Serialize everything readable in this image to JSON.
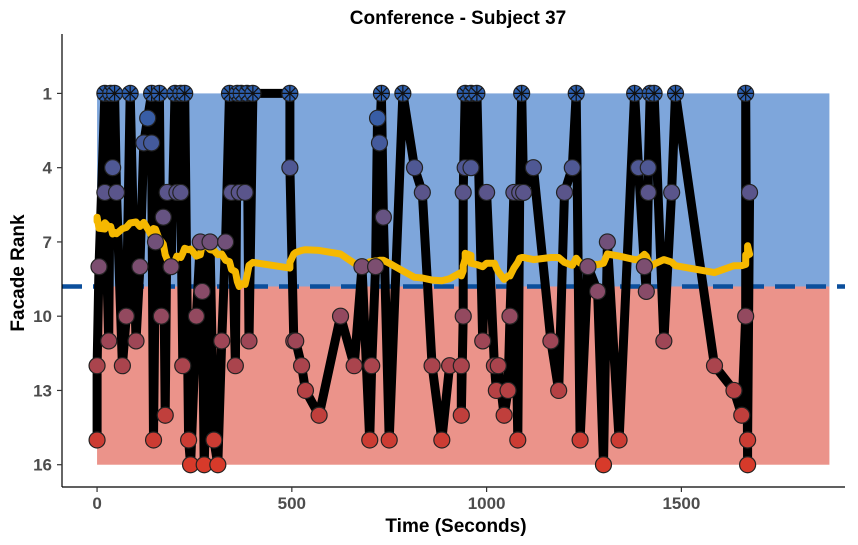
{
  "chart_data": {
    "type": "line",
    "title": "Conference - Subject 37",
    "xlabel": "Time (Seconds)",
    "ylabel": "Facade Rank",
    "xlim": [
      -90,
      1920
    ],
    "ylim": [
      16.9,
      -1.4
    ],
    "y_reversed": true,
    "x_ticks": [
      0,
      500,
      1000,
      1500
    ],
    "y_ticks": [
      1,
      4,
      7,
      10,
      13,
      16
    ],
    "threshold": 8.8,
    "bands": [
      {
        "name": "upper",
        "from": 1,
        "to": 8.8,
        "color": "#7ea6db"
      },
      {
        "name": "lower",
        "from": 8.8,
        "to": 16,
        "color": "#eb938a"
      }
    ],
    "band_x_range": [
      0,
      1880
    ],
    "threshold_color": "#0b4f9c",
    "line_color": "#000000",
    "trend_color": "#f5b800",
    "point_low_color": "#2d5fae",
    "point_high_color": "#d73a2a",
    "points": [
      [
        0,
        15
      ],
      [
        0,
        12
      ],
      [
        5,
        8
      ],
      [
        20,
        1
      ],
      [
        20,
        5
      ],
      [
        30,
        11
      ],
      [
        35,
        1
      ],
      [
        40,
        4
      ],
      [
        45,
        1
      ],
      [
        50,
        5
      ],
      [
        65,
        12
      ],
      [
        75,
        10
      ],
      [
        85,
        1
      ],
      [
        100,
        11
      ],
      [
        110,
        8
      ],
      [
        120,
        3
      ],
      [
        130,
        2
      ],
      [
        140,
        1
      ],
      [
        140,
        3
      ],
      [
        145,
        15
      ],
      [
        150,
        7
      ],
      [
        160,
        1
      ],
      [
        165,
        10
      ],
      [
        170,
        6
      ],
      [
        175,
        14
      ],
      [
        180,
        5
      ],
      [
        190,
        8
      ],
      [
        200,
        1
      ],
      [
        205,
        5
      ],
      [
        215,
        1
      ],
      [
        215,
        5
      ],
      [
        220,
        12
      ],
      [
        225,
        1
      ],
      [
        235,
        15
      ],
      [
        240,
        16
      ],
      [
        255,
        10
      ],
      [
        265,
        7
      ],
      [
        270,
        9
      ],
      [
        275,
        16
      ],
      [
        290,
        7
      ],
      [
        300,
        15
      ],
      [
        310,
        16
      ],
      [
        320,
        11
      ],
      [
        330,
        7
      ],
      [
        340,
        1
      ],
      [
        345,
        5
      ],
      [
        355,
        12
      ],
      [
        360,
        1
      ],
      [
        365,
        5
      ],
      [
        370,
        1
      ],
      [
        380,
        5
      ],
      [
        385,
        1
      ],
      [
        390,
        11
      ],
      [
        400,
        1
      ],
      [
        495,
        1
      ],
      [
        495,
        4
      ],
      [
        505,
        11
      ],
      [
        510,
        11
      ],
      [
        525,
        12
      ],
      [
        535,
        13
      ],
      [
        570,
        14
      ],
      [
        625,
        10
      ],
      [
        660,
        12
      ],
      [
        680,
        8
      ],
      [
        700,
        15
      ],
      [
        705,
        12
      ],
      [
        715,
        8
      ],
      [
        720,
        2
      ],
      [
        725,
        3
      ],
      [
        730,
        1
      ],
      [
        735,
        6
      ],
      [
        750,
        15
      ],
      [
        785,
        1
      ],
      [
        815,
        4
      ],
      [
        835,
        5
      ],
      [
        860,
        12
      ],
      [
        885,
        15
      ],
      [
        905,
        12
      ],
      [
        935,
        12
      ],
      [
        935,
        14
      ],
      [
        940,
        10
      ],
      [
        940,
        5
      ],
      [
        945,
        1
      ],
      [
        945,
        4
      ],
      [
        960,
        1
      ],
      [
        960,
        4
      ],
      [
        975,
        1
      ],
      [
        990,
        11
      ],
      [
        1000,
        5
      ],
      [
        1020,
        12
      ],
      [
        1025,
        13
      ],
      [
        1030,
        12
      ],
      [
        1045,
        14
      ],
      [
        1055,
        13
      ],
      [
        1060,
        10
      ],
      [
        1070,
        5
      ],
      [
        1080,
        15
      ],
      [
        1085,
        5
      ],
      [
        1090,
        1
      ],
      [
        1095,
        5
      ],
      [
        1120,
        4
      ],
      [
        1165,
        11
      ],
      [
        1185,
        13
      ],
      [
        1200,
        5
      ],
      [
        1220,
        4
      ],
      [
        1230,
        1
      ],
      [
        1240,
        15
      ],
      [
        1260,
        8
      ],
      [
        1285,
        9
      ],
      [
        1300,
        16
      ],
      [
        1310,
        7
      ],
      [
        1340,
        15
      ],
      [
        1380,
        1
      ],
      [
        1390,
        4
      ],
      [
        1405,
        8
      ],
      [
        1410,
        9
      ],
      [
        1415,
        5
      ],
      [
        1415,
        4
      ],
      [
        1420,
        1
      ],
      [
        1430,
        1
      ],
      [
        1455,
        11
      ],
      [
        1475,
        5
      ],
      [
        1485,
        1
      ],
      [
        1585,
        12
      ],
      [
        1635,
        13
      ],
      [
        1655,
        14
      ],
      [
        1665,
        10
      ],
      [
        1665,
        1
      ],
      [
        1670,
        16
      ],
      [
        1670,
        15
      ],
      [
        1675,
        5
      ]
    ]
  }
}
